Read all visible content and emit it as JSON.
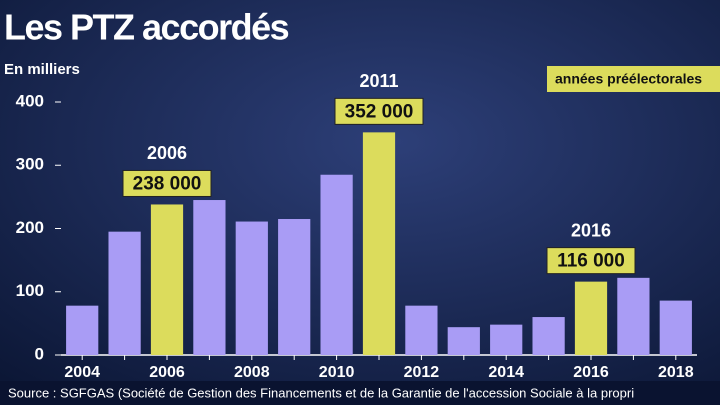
{
  "chart_data": {
    "type": "bar",
    "title": "Les PTZ accordés",
    "subtitle": "En milliers",
    "source": "Source : SGFGAS (Société de Gestion des Financements et de la Garantie de l'accession Sociale à la propri",
    "categories": [
      "2004",
      null,
      "2006",
      null,
      "2008",
      null,
      "2010",
      null,
      "2012",
      null,
      "2014",
      null,
      "2016",
      null,
      "2018"
    ],
    "values": [
      78,
      195,
      238,
      245,
      211,
      215,
      285,
      352,
      78,
      44,
      48,
      60,
      116,
      122,
      86
    ],
    "value_labels": [
      null,
      null,
      "238 000",
      null,
      null,
      null,
      null,
      "352 000",
      null,
      null,
      null,
      null,
      "116 000",
      null,
      null
    ],
    "value_label_years": [
      null,
      null,
      "2006",
      null,
      null,
      null,
      null,
      "2011",
      null,
      null,
      null,
      null,
      "2016",
      null,
      null
    ],
    "colors": [
      "#a99cf5",
      "#a99cf5",
      "#dcdc5c",
      "#a99cf5",
      "#a99cf5",
      "#a99cf5",
      "#a99cf5",
      "#dcdc5c",
      "#a99cf5",
      "#a99cf5",
      "#a99cf5",
      "#a99cf5",
      "#dcdc5c",
      "#a99cf5",
      "#a99cf5"
    ],
    "legend": {
      "label": "années préélectorales",
      "color": "#dcdc5c",
      "position": "top-right"
    },
    "ylim": [
      0,
      400
    ],
    "yticks": [
      0,
      100,
      200,
      300,
      400
    ],
    "grid": false
  }
}
